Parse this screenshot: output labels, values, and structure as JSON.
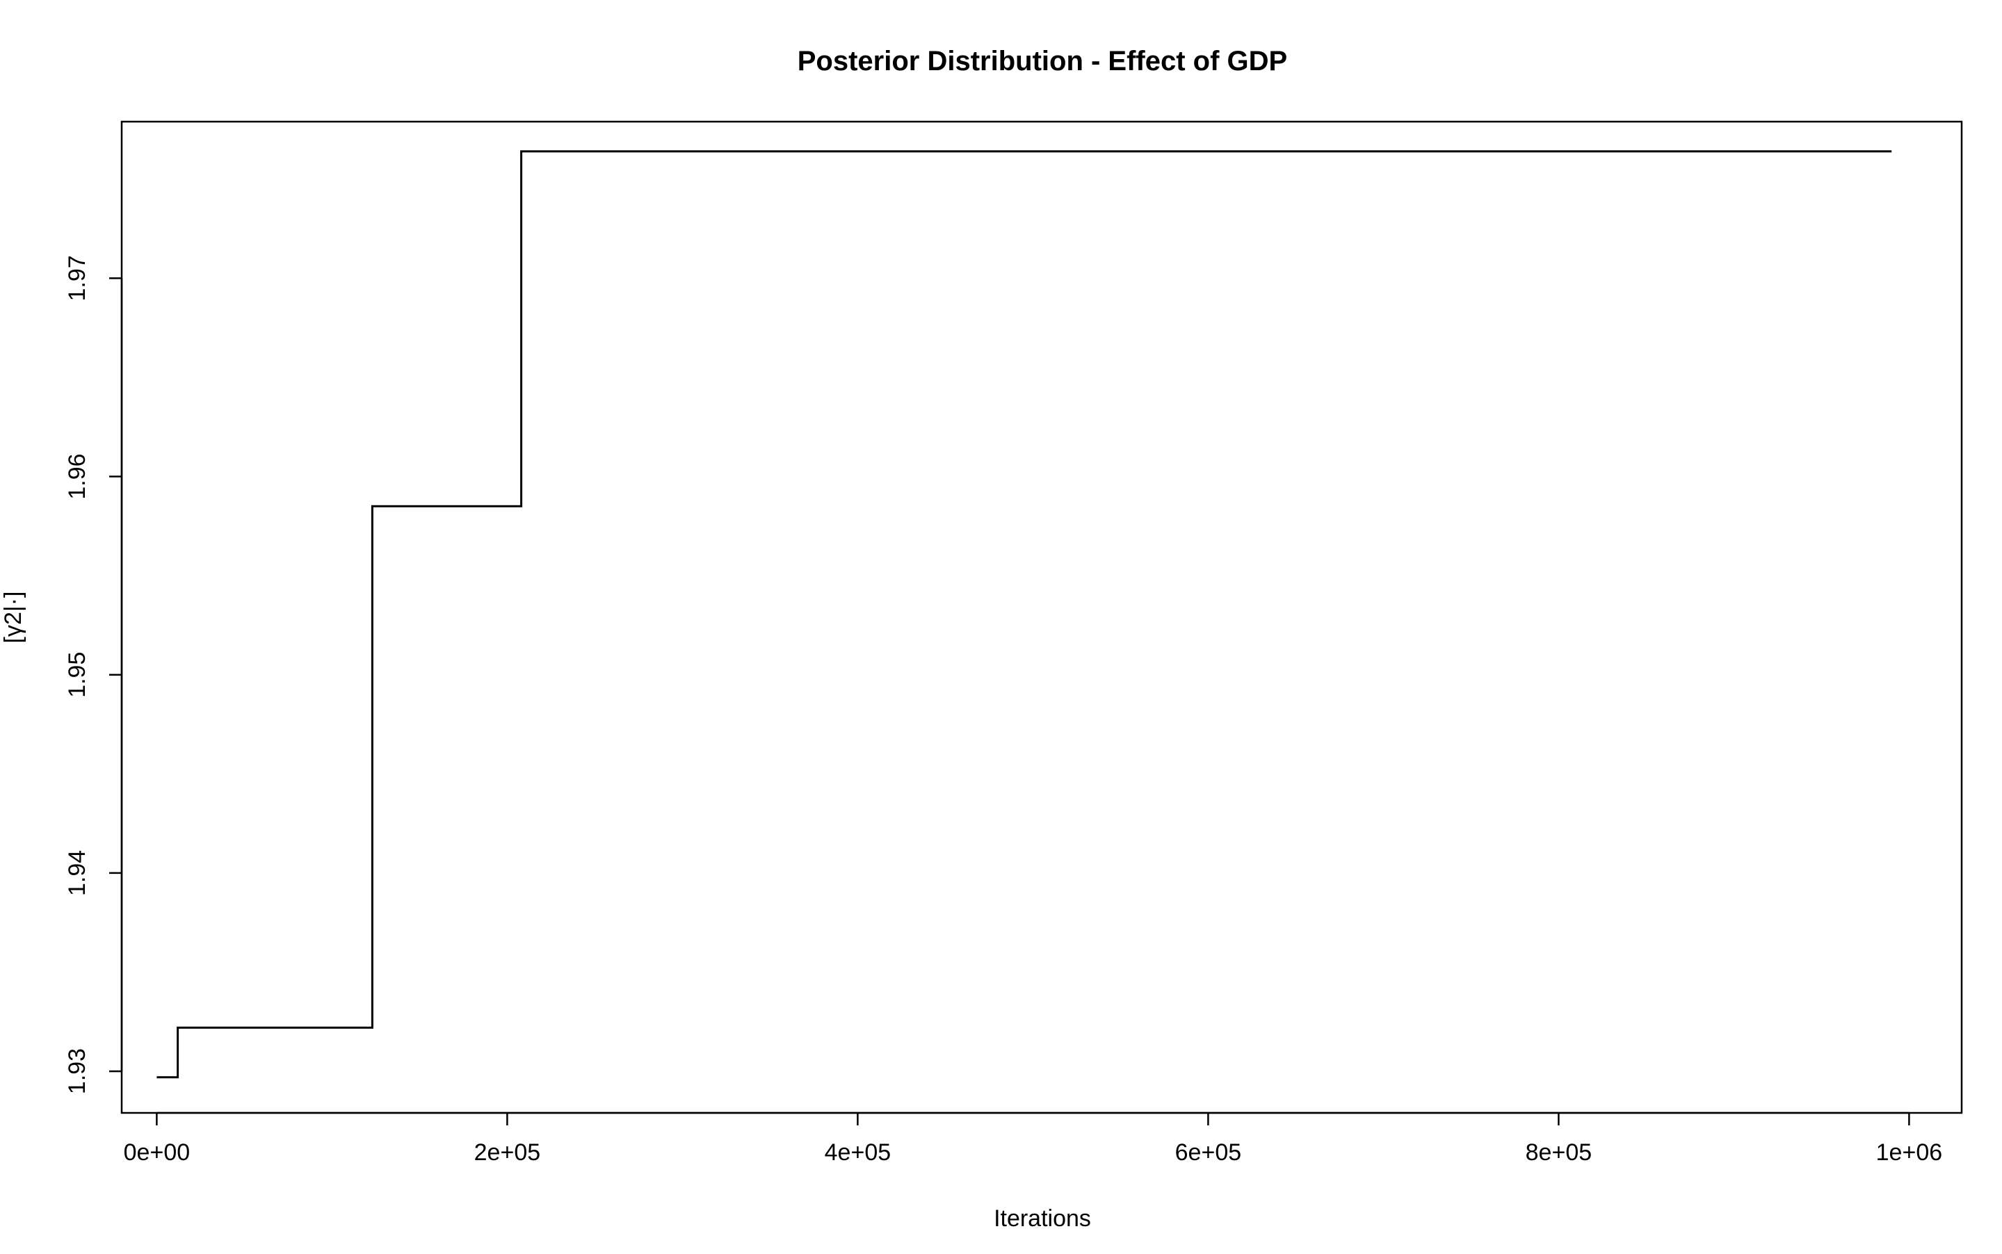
{
  "chart_data": {
    "type": "line",
    "title": "Posterior Distribution - Effect of GDP",
    "xlabel": "Iterations",
    "ylabel": "[γ2|·]",
    "xlim": [
      -20000,
      1030000
    ],
    "ylim": [
      1.9279,
      1.9779
    ],
    "x_ticks": [
      0,
      200000,
      400000,
      600000,
      800000,
      1000000
    ],
    "x_tick_labels": [
      "0e+00",
      "2e+05",
      "4e+05",
      "6e+05",
      "8e+05",
      "1e+06"
    ],
    "y_ticks": [
      1.93,
      1.94,
      1.95,
      1.96,
      1.97
    ],
    "y_tick_labels": [
      "1.93",
      "1.94",
      "1.95",
      "1.96",
      "1.97"
    ],
    "grid": false,
    "legend": "none",
    "series": [
      {
        "step": "post",
        "color": "#000000",
        "x": [
          0,
          12000,
          123000,
          208000,
          990000
        ],
        "y": [
          1.9297,
          1.9322,
          1.9585,
          1.9764,
          1.9764
        ]
      }
    ]
  }
}
